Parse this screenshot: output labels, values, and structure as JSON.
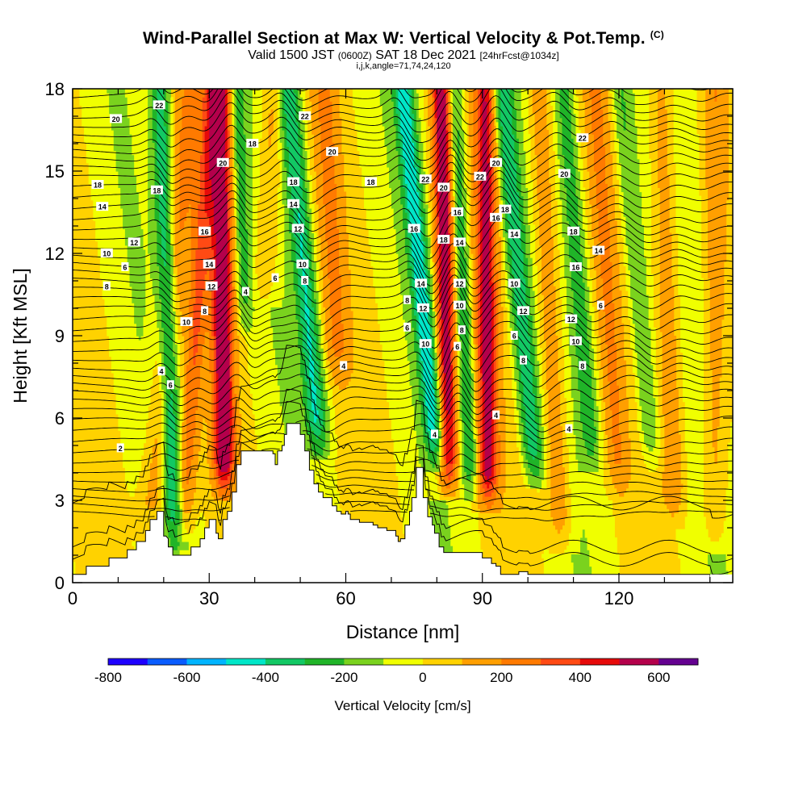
{
  "chart_data": {
    "type": "heatmap",
    "title": "Wind-Parallel Section at Max W: Vertical Velocity & Pot.Temp.",
    "title_mark": "(C)",
    "subtitle_valid": "Valid 1500 JST",
    "subtitle_utc": "(0600Z)",
    "subtitle_date": "SAT 18 Dec 2021",
    "subtitle_fcst": "[24hrFcst@1034z]",
    "subtitle2": "i,j,k,angle=71,74,24,120",
    "xlabel": "Distance [nm]",
    "ylabel": "Height [Kft MSL]",
    "xlim": [
      0,
      145
    ],
    "ylim": [
      0,
      18
    ],
    "x_ticks": [
      0,
      30,
      60,
      90,
      120
    ],
    "x_tick_labels": [
      "0",
      "30",
      "60",
      "90",
      "120"
    ],
    "y_ticks": [
      0,
      3,
      6,
      9,
      12,
      15,
      18
    ],
    "y_tick_labels": [
      "0",
      "3",
      "6",
      "9",
      "12",
      "15",
      "18"
    ],
    "colorbar": {
      "title": "Vertical Velocity [cm/s]",
      "boundaries": [
        -800,
        700
      ],
      "tick_values": [
        -800,
        -600,
        -400,
        -200,
        0,
        200,
        400,
        600
      ],
      "tick_labels": [
        "-800",
        "-600",
        "-400",
        "-200",
        "0",
        "200",
        "400",
        "600"
      ],
      "colors": [
        "#1e00ff",
        "#0a5cff",
        "#00b4ff",
        "#00e6c8",
        "#12c864",
        "#20b428",
        "#7ad21e",
        "#f0ff00",
        "#ffd200",
        "#ff9f00",
        "#ff7a00",
        "#ff4a14",
        "#e60a0a",
        "#b4004b",
        "#640090"
      ]
    },
    "background_color": "#ffd200",
    "bands": [
      {
        "kind": "up",
        "x_base": 21,
        "w": 3,
        "mag": 0.35,
        "slope": 0.55,
        "bot": 1.5
      },
      {
        "kind": "down",
        "x_base": 21,
        "w": 1.9,
        "mag": 0.75,
        "slope": -0.2,
        "bot": 1.2
      },
      {
        "kind": "up",
        "x_base": 27,
        "w": 2.2,
        "mag": 0.5,
        "slope": 0.4,
        "bot": 1.5
      },
      {
        "kind": "up",
        "x_base": 33,
        "w": 2.4,
        "mag": 1.0,
        "slope": -0.05,
        "bot": 3.0
      },
      {
        "kind": "down",
        "x_base": 38,
        "w": 1.6,
        "mag": 0.4,
        "slope": -0.2,
        "bot": 9.0
      },
      {
        "kind": "up",
        "x_base": 42,
        "w": 2.5,
        "mag": 0.3,
        "slope": 0.2,
        "bot": 10.0
      },
      {
        "kind": "down",
        "x_base": 52,
        "w": 2.2,
        "mag": 0.8,
        "slope": -0.5,
        "bot": 4.5
      },
      {
        "kind": "up",
        "x_base": 58,
        "w": 2.8,
        "mag": 0.35,
        "slope": -0.3,
        "bot": 7.0
      },
      {
        "kind": "down",
        "x_base": 77.5,
        "w": 2.0,
        "mag": 1.0,
        "slope": -0.55,
        "bot": 4.0
      },
      {
        "kind": "up",
        "x_base": 82,
        "w": 2.3,
        "mag": 1.0,
        "slope": -0.1,
        "bot": 3.0
      },
      {
        "kind": "down",
        "x_base": 86,
        "w": 1.8,
        "mag": 0.6,
        "slope": -0.25,
        "bot": 3.0
      },
      {
        "kind": "up",
        "x_base": 91,
        "w": 2.4,
        "mag": 0.85,
        "slope": -0.05,
        "bot": 2.5
      },
      {
        "kind": "down",
        "x_base": 99,
        "w": 2.1,
        "mag": 0.75,
        "slope": -0.5,
        "bot": 3.5
      },
      {
        "kind": "up",
        "x_base": 105,
        "w": 2.5,
        "mag": 0.4,
        "slope": -0.3,
        "bot": 1.0
      },
      {
        "kind": "down",
        "x_base": 112,
        "w": 2.0,
        "mag": 0.45,
        "slope": -0.45,
        "bot": 4.0
      },
      {
        "kind": "up",
        "x_base": 118,
        "w": 2.4,
        "mag": 0.35,
        "slope": -0.35,
        "bot": 3.0
      },
      {
        "kind": "down",
        "x_base": 125,
        "w": 2.2,
        "mag": 0.35,
        "slope": -0.5,
        "bot": 4.0
      },
      {
        "kind": "up",
        "x_base": 131,
        "w": 2.6,
        "mag": 0.35,
        "slope": -0.2,
        "bot": 2.0
      },
      {
        "kind": "up",
        "x_base": 141,
        "w": 2.6,
        "mag": 0.3,
        "slope": 0.0,
        "bot": 1.0
      }
    ],
    "terrain": [
      [
        0,
        0.3
      ],
      [
        3,
        0.3
      ],
      [
        3,
        0.6
      ],
      [
        8,
        0.6
      ],
      [
        8,
        0.9
      ],
      [
        12,
        0.9
      ],
      [
        12,
        1.2
      ],
      [
        14,
        1.2
      ],
      [
        14,
        1.5
      ],
      [
        16,
        1.5
      ],
      [
        16,
        1.9
      ],
      [
        17,
        1.9
      ],
      [
        17,
        2.3
      ],
      [
        18.5,
        2.3
      ],
      [
        18.5,
        2.6
      ],
      [
        20,
        2.6
      ],
      [
        20,
        1.7
      ],
      [
        20.5,
        1.7
      ],
      [
        21,
        1.6
      ],
      [
        21,
        1.3
      ],
      [
        22,
        1.3
      ],
      [
        22,
        1.0
      ],
      [
        26,
        1.0
      ],
      [
        26,
        1.3
      ],
      [
        28,
        1.3
      ],
      [
        28,
        1.6
      ],
      [
        29,
        1.6
      ],
      [
        29,
        2.0
      ],
      [
        30,
        2.0
      ],
      [
        30,
        2.3
      ],
      [
        31.5,
        2.3
      ],
      [
        31.5,
        1.8
      ],
      [
        32,
        1.8
      ],
      [
        32,
        1.6
      ],
      [
        33,
        1.6
      ],
      [
        33,
        2.3
      ],
      [
        34,
        2.3
      ],
      [
        34,
        2.6
      ],
      [
        35,
        2.6
      ],
      [
        35,
        3.3
      ],
      [
        36,
        3.3
      ],
      [
        36,
        4.3
      ],
      [
        37,
        4.3
      ],
      [
        37,
        4.8
      ],
      [
        44,
        4.8
      ],
      [
        44,
        4.7
      ],
      [
        44.5,
        4.7
      ],
      [
        44.5,
        4.3
      ],
      [
        45,
        4.3
      ],
      [
        45,
        4.8
      ],
      [
        46,
        4.8
      ],
      [
        46,
        5.0
      ],
      [
        46.5,
        5.0
      ],
      [
        46.5,
        5.4
      ],
      [
        47,
        5.4
      ],
      [
        47,
        5.8
      ],
      [
        50,
        5.8
      ],
      [
        50,
        5.4
      ],
      [
        51,
        5.4
      ],
      [
        51,
        4.8
      ],
      [
        52,
        4.8
      ],
      [
        52,
        4.1
      ],
      [
        53,
        4.1
      ],
      [
        53,
        3.6
      ],
      [
        54,
        3.6
      ],
      [
        54,
        3.3
      ],
      [
        55,
        3.3
      ],
      [
        55,
        3.1
      ],
      [
        57,
        3.1
      ],
      [
        57,
        2.8
      ],
      [
        58,
        2.8
      ],
      [
        58,
        2.6
      ],
      [
        59,
        2.6
      ],
      [
        59,
        2.5
      ],
      [
        60,
        2.5
      ],
      [
        60,
        2.6
      ],
      [
        60.5,
        2.6
      ],
      [
        60.5,
        2.5
      ],
      [
        61,
        2.5
      ],
      [
        61,
        2.3
      ],
      [
        63,
        2.3
      ],
      [
        63,
        2.2
      ],
      [
        66,
        2.2
      ],
      [
        66,
        2.1
      ],
      [
        67,
        2.1
      ],
      [
        67,
        2.0
      ],
      [
        69,
        2.0
      ],
      [
        69,
        1.9
      ],
      [
        71,
        1.9
      ],
      [
        71,
        1.7
      ],
      [
        71.5,
        1.7
      ],
      [
        71.5,
        1.5
      ],
      [
        72,
        1.5
      ],
      [
        72,
        1.6
      ],
      [
        73,
        1.6
      ],
      [
        73,
        2.1
      ],
      [
        74,
        2.1
      ],
      [
        74,
        2.6
      ],
      [
        74.5,
        2.6
      ],
      [
        74.5,
        3.1
      ],
      [
        75.5,
        3.1
      ],
      [
        75.5,
        4.2
      ],
      [
        77,
        4.2
      ],
      [
        77,
        3.1
      ],
      [
        78,
        3.1
      ],
      [
        78,
        2.4
      ],
      [
        79,
        2.4
      ],
      [
        79,
        2.1
      ],
      [
        79.5,
        2.1
      ],
      [
        79.5,
        1.8
      ],
      [
        80.5,
        1.8
      ],
      [
        80.5,
        1.3
      ],
      [
        81.5,
        1.3
      ],
      [
        81.5,
        1.1
      ],
      [
        90,
        1.1
      ],
      [
        90,
        0.9
      ],
      [
        92,
        0.9
      ],
      [
        92,
        0.7
      ],
      [
        93,
        0.7
      ],
      [
        93,
        0.6
      ],
      [
        94,
        0.6
      ],
      [
        94,
        0.3
      ],
      [
        98,
        0.3
      ],
      [
        98,
        0.4
      ],
      [
        100,
        0.4
      ],
      [
        100,
        0.3
      ],
      [
        140,
        0.3
      ],
      [
        140,
        0
      ],
      [
        0,
        0
      ]
    ],
    "theta_levels": [
      2,
      4,
      6,
      8,
      10,
      12,
      14,
      16,
      18,
      20,
      22
    ],
    "theta_labels": [
      {
        "text": "20",
        "x": 9.5,
        "y": 16.9
      },
      {
        "text": "18",
        "x": 5.5,
        "y": 14.5
      },
      {
        "text": "14",
        "x": 6.5,
        "y": 13.7
      },
      {
        "text": "12",
        "x": 13.5,
        "y": 12.4
      },
      {
        "text": "10",
        "x": 7.5,
        "y": 12.0
      },
      {
        "text": "6",
        "x": 11.5,
        "y": 11.5
      },
      {
        "text": "8",
        "x": 7.5,
        "y": 10.8
      },
      {
        "text": "2",
        "x": 10.5,
        "y": 4.9
      },
      {
        "text": "22",
        "x": 19,
        "y": 17.4
      },
      {
        "text": "18",
        "x": 18.5,
        "y": 14.3
      },
      {
        "text": "10",
        "x": 25,
        "y": 9.5
      },
      {
        "text": "4",
        "x": 19.5,
        "y": 7.7
      },
      {
        "text": "6",
        "x": 21.5,
        "y": 7.2
      },
      {
        "text": "20",
        "x": 33,
        "y": 15.3
      },
      {
        "text": "18",
        "x": 39.5,
        "y": 16.0
      },
      {
        "text": "16",
        "x": 29,
        "y": 12.8
      },
      {
        "text": "14",
        "x": 30,
        "y": 11.6
      },
      {
        "text": "12",
        "x": 30.5,
        "y": 10.8
      },
      {
        "text": "8",
        "x": 29,
        "y": 9.9
      },
      {
        "text": "4",
        "x": 38,
        "y": 10.6
      },
      {
        "text": "6",
        "x": 44.5,
        "y": 11.1
      },
      {
        "text": "22",
        "x": 51,
        "y": 17.0
      },
      {
        "text": "18",
        "x": 48.5,
        "y": 14.6
      },
      {
        "text": "14",
        "x": 48.5,
        "y": 13.8
      },
      {
        "text": "12",
        "x": 49.5,
        "y": 12.9
      },
      {
        "text": "10",
        "x": 50.5,
        "y": 11.6
      },
      {
        "text": "8",
        "x": 51,
        "y": 11.0
      },
      {
        "text": "20",
        "x": 57,
        "y": 15.7
      },
      {
        "text": "18",
        "x": 65.5,
        "y": 14.6
      },
      {
        "text": "4",
        "x": 59.5,
        "y": 7.9
      },
      {
        "text": "22",
        "x": 77.5,
        "y": 14.7
      },
      {
        "text": "16",
        "x": 75,
        "y": 12.9
      },
      {
        "text": "14",
        "x": 76.5,
        "y": 10.9
      },
      {
        "text": "12",
        "x": 77,
        "y": 10.0
      },
      {
        "text": "8",
        "x": 73.5,
        "y": 10.3
      },
      {
        "text": "6",
        "x": 73.5,
        "y": 9.3
      },
      {
        "text": "10",
        "x": 77.5,
        "y": 8.7
      },
      {
        "text": "4",
        "x": 79.5,
        "y": 5.4
      },
      {
        "text": "20",
        "x": 81.5,
        "y": 14.4
      },
      {
        "text": "18",
        "x": 81.5,
        "y": 12.5
      },
      {
        "text": "16",
        "x": 84.5,
        "y": 13.5
      },
      {
        "text": "14",
        "x": 85,
        "y": 12.4
      },
      {
        "text": "12",
        "x": 85,
        "y": 10.9
      },
      {
        "text": "10",
        "x": 85,
        "y": 10.1
      },
      {
        "text": "8",
        "x": 85.5,
        "y": 9.2
      },
      {
        "text": "6",
        "x": 84.5,
        "y": 8.6
      },
      {
        "text": "22",
        "x": 89.5,
        "y": 14.8
      },
      {
        "text": "20",
        "x": 93,
        "y": 15.3
      },
      {
        "text": "18",
        "x": 95,
        "y": 13.6
      },
      {
        "text": "16",
        "x": 93,
        "y": 13.3
      },
      {
        "text": "14",
        "x": 97,
        "y": 12.7
      },
      {
        "text": "10",
        "x": 97,
        "y": 10.9
      },
      {
        "text": "12",
        "x": 99,
        "y": 9.9
      },
      {
        "text": "6",
        "x": 97,
        "y": 9.0
      },
      {
        "text": "8",
        "x": 99,
        "y": 8.1
      },
      {
        "text": "4",
        "x": 93,
        "y": 6.1
      },
      {
        "text": "22",
        "x": 112,
        "y": 16.2
      },
      {
        "text": "20",
        "x": 108,
        "y": 14.9
      },
      {
        "text": "18",
        "x": 110,
        "y": 12.8
      },
      {
        "text": "16",
        "x": 110.5,
        "y": 11.5
      },
      {
        "text": "14",
        "x": 115.5,
        "y": 12.1
      },
      {
        "text": "12",
        "x": 109.5,
        "y": 9.6
      },
      {
        "text": "10",
        "x": 110.5,
        "y": 8.8
      },
      {
        "text": "8",
        "x": 112,
        "y": 7.9
      },
      {
        "text": "6",
        "x": 116,
        "y": 10.1
      },
      {
        "text": "4",
        "x": 109,
        "y": 5.6
      }
    ]
  }
}
